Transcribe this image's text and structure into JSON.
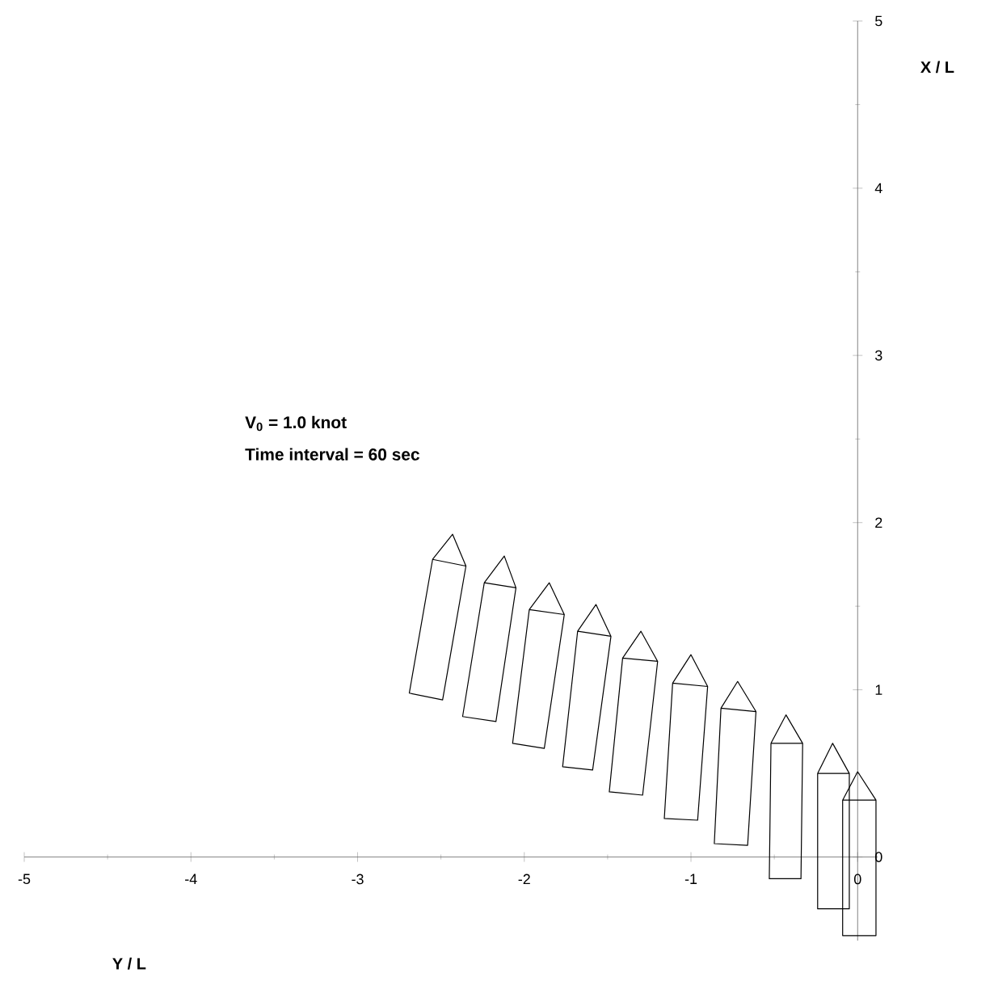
{
  "chart_data": {
    "type": "line",
    "xlabel": "Y / L",
    "ylabel": "X / L",
    "annotations": [
      "V$_{0}$ = 1.0  knot",
      "Time interval = 60 sec"
    ],
    "color": "#000000",
    "xlim": [
      -5,
      0.12
    ],
    "ylim": [
      -0.5,
      5
    ],
    "xticks": [
      -5,
      -4,
      -3,
      -2,
      -1,
      0
    ],
    "yticks": [
      0,
      1,
      2,
      3,
      4,
      5
    ],
    "series": [
      {
        "x": [
          -2.55,
          -2.43,
          -2.35,
          -2.49,
          -2.69,
          -2.55,
          -2.35
        ],
        "values": [
          1.78,
          1.93,
          1.74,
          0.94,
          0.98,
          1.78,
          1.74
        ]
      },
      {
        "x": [
          -2.24,
          -2.12,
          -2.05,
          -2.17,
          -2.37,
          -2.24,
          -2.05
        ],
        "values": [
          1.64,
          1.8,
          1.61,
          0.81,
          0.84,
          1.64,
          1.61
        ]
      },
      {
        "x": [
          -1.97,
          -1.85,
          -1.76,
          -1.88,
          -2.07,
          -1.97,
          -1.76
        ],
        "values": [
          1.48,
          1.64,
          1.45,
          0.65,
          0.68,
          1.48,
          1.45
        ]
      },
      {
        "x": [
          -1.68,
          -1.57,
          -1.48,
          -1.59,
          -1.77,
          -1.68,
          -1.48
        ],
        "values": [
          1.35,
          1.51,
          1.32,
          0.52,
          0.54,
          1.35,
          1.32
        ]
      },
      {
        "x": [
          -1.41,
          -1.3,
          -1.2,
          -1.29,
          -1.49,
          -1.41,
          -1.2
        ],
        "values": [
          1.19,
          1.35,
          1.17,
          0.37,
          0.39,
          1.19,
          1.17
        ]
      },
      {
        "x": [
          -1.11,
          -1.0,
          -0.9,
          -0.96,
          -1.16,
          -1.11,
          -0.9
        ],
        "values": [
          1.04,
          1.21,
          1.02,
          0.22,
          0.23,
          1.04,
          1.02
        ]
      },
      {
        "x": [
          -0.82,
          -0.72,
          -0.61,
          -0.66,
          -0.86,
          -0.82,
          -0.61
        ],
        "values": [
          0.89,
          1.05,
          0.87,
          0.07,
          0.08,
          0.89,
          0.87
        ]
      },
      {
        "x": [
          -0.52,
          -0.43,
          -0.33,
          -0.34,
          -0.53,
          -0.52,
          -0.33
        ],
        "values": [
          0.68,
          0.85,
          0.68,
          -0.13,
          -0.13,
          0.68,
          0.68
        ]
      },
      {
        "x": [
          -0.24,
          -0.15,
          -0.05,
          -0.05,
          -0.24,
          -0.24,
          -0.05
        ],
        "values": [
          0.5,
          0.68,
          0.5,
          -0.31,
          -0.31,
          0.5,
          0.5
        ]
      },
      {
        "x": [
          -0.09,
          0.0,
          0.11,
          0.11,
          -0.09,
          -0.09,
          0.11
        ],
        "values": [
          0.34,
          0.51,
          0.34,
          -0.47,
          -0.47,
          0.34,
          0.34
        ]
      }
    ]
  }
}
